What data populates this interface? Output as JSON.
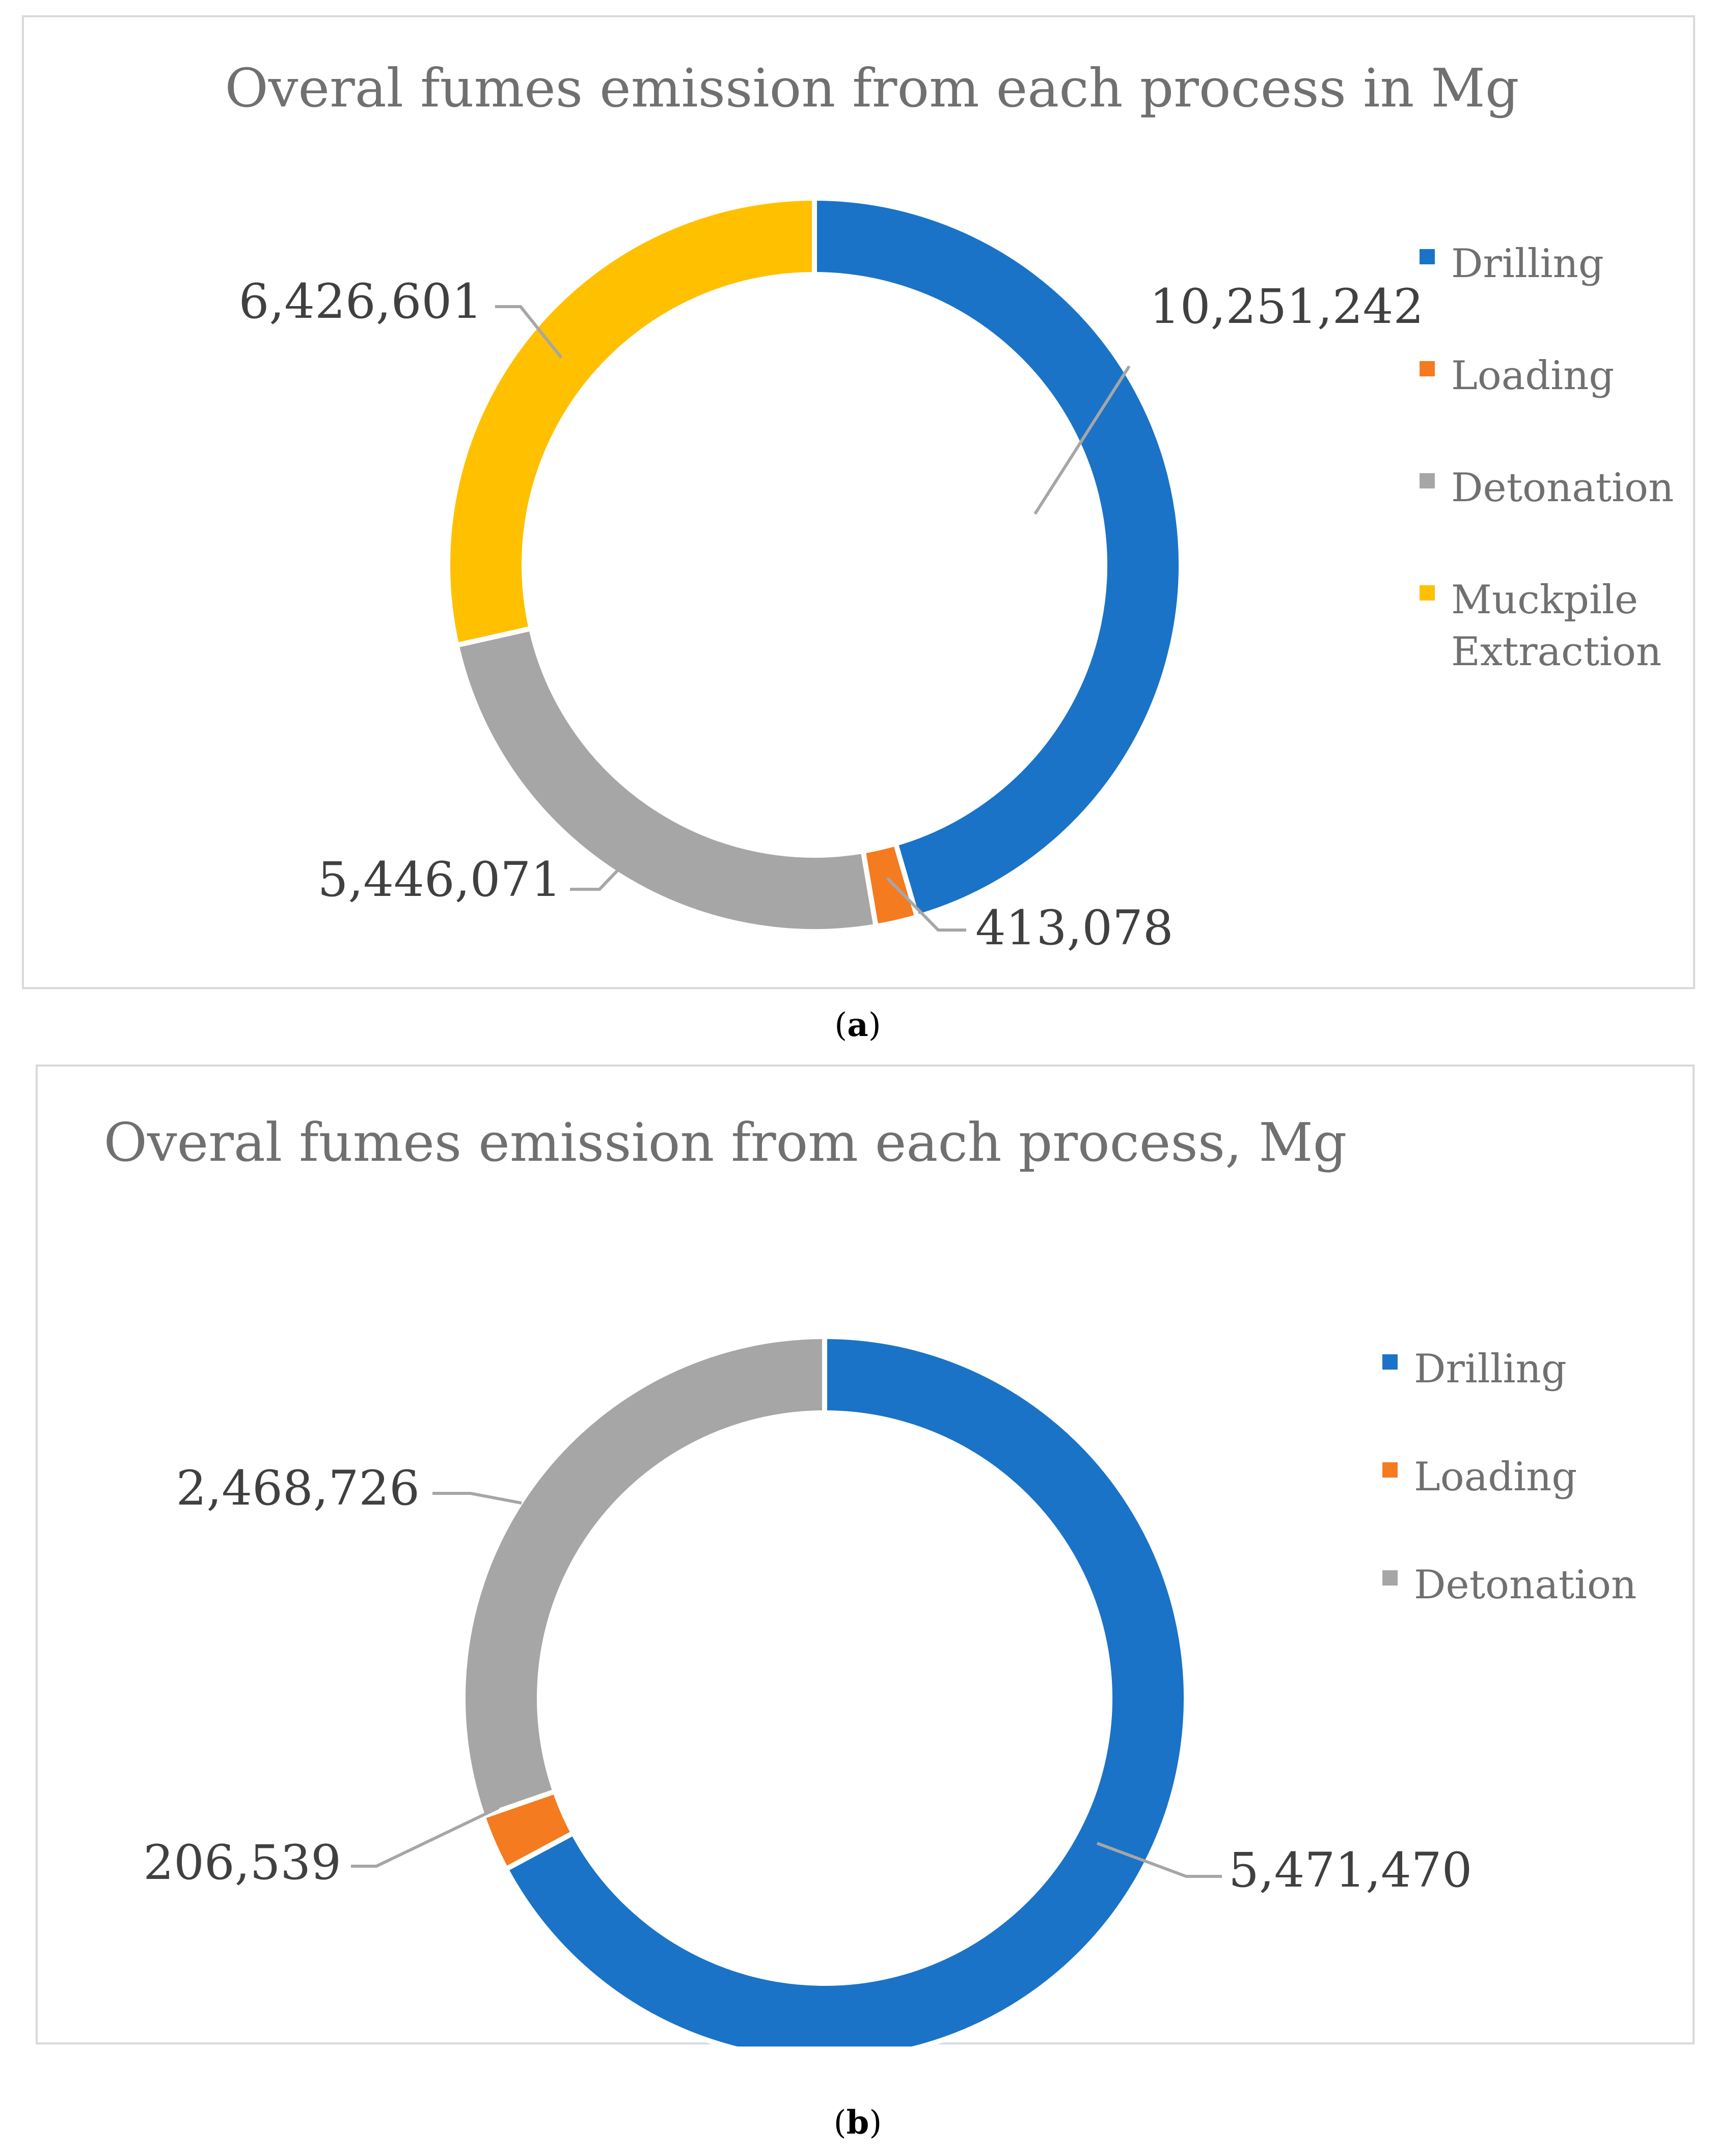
{
  "chart_data": [
    {
      "type": "pie",
      "title": "Overal fumes emission from each process in Mg",
      "categories": [
        "Drilling",
        "Loading",
        "Detonation",
        "Muckpile Extraction"
      ],
      "values": [
        10251242,
        413078,
        5446071,
        6426601
      ],
      "labels": [
        "10,251,242",
        "413,078",
        "5,446,071",
        "6,426,601"
      ],
      "colors": [
        "#1a73c7",
        "#f47b20",
        "#a6a6a6",
        "#ffc000"
      ],
      "legend": {
        "position": "right",
        "entries": [
          [
            "Drilling"
          ],
          [
            "Loading"
          ],
          [
            "Detonation"
          ],
          [
            "Muckpile",
            "Extraction"
          ]
        ]
      },
      "caption": "a"
    },
    {
      "type": "pie",
      "title": "Overal fumes emission from each process, Mg",
      "categories": [
        "Drilling",
        "Loading",
        "Detonation"
      ],
      "values": [
        5471470,
        206539,
        2468726
      ],
      "labels": [
        "5,471,470",
        "206,539",
        "2,468,726"
      ],
      "colors": [
        "#1a73c7",
        "#f47b20",
        "#a6a6a6"
      ],
      "legend": {
        "position": "right",
        "entries": [
          [
            "Drilling"
          ],
          [
            "Loading"
          ],
          [
            "Detonation"
          ]
        ]
      },
      "caption": "b"
    }
  ]
}
